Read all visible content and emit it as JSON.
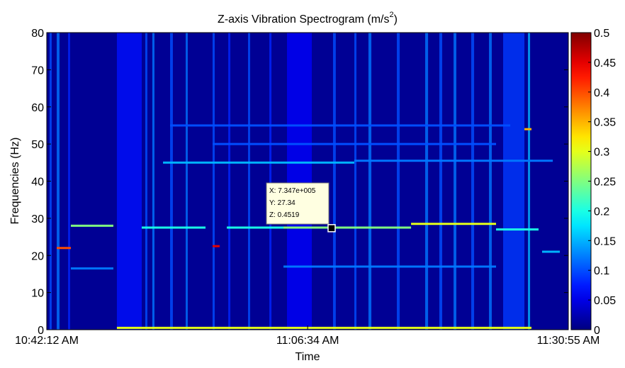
{
  "chart_data": {
    "type": "spectrogram",
    "title": "Z-axis Vibration Spectrogram (m/s",
    "title_superscript": "2",
    "title_suffix": ")",
    "xlabel": "Time",
    "ylabel": "Frequencies (Hz)",
    "xlim": [
      0,
      48.72
    ],
    "xticks": [
      {
        "value": 0,
        "label": "10:42:12 AM"
      },
      {
        "value": 24.37,
        "label": "11:06:34 AM"
      },
      {
        "value": 48.72,
        "label": "11:30:55 AM"
      }
    ],
    "ylim": [
      0,
      80
    ],
    "yticks": [
      0,
      10,
      20,
      30,
      40,
      50,
      60,
      70,
      80
    ],
    "clim": [
      0,
      0.5
    ],
    "cticks": [
      0,
      0.05,
      0.1,
      0.15,
      0.2,
      0.25,
      0.3,
      0.35,
      0.4,
      0.45,
      0.5
    ],
    "colormap": "jet",
    "columns": [
      {
        "t0": 0.26,
        "t1": 0.46,
        "intensity": 0.1
      },
      {
        "t0": 0.93,
        "t1": 1.19,
        "intensity": 0.12
      },
      {
        "t0": 1.99,
        "t1": 2.18,
        "intensity": 0.08
      },
      {
        "t0": 6.55,
        "t1": 8.87,
        "intensity": 0.07
      },
      {
        "t0": 9.2,
        "t1": 9.4,
        "intensity": 0.1
      },
      {
        "t0": 9.86,
        "t1": 10.06,
        "intensity": 0.12
      },
      {
        "t0": 11.52,
        "t1": 11.78,
        "intensity": 0.1
      },
      {
        "t0": 12.98,
        "t1": 13.17,
        "intensity": 0.12
      },
      {
        "t0": 15.49,
        "t1": 15.69,
        "intensity": 0.1
      },
      {
        "t0": 16.95,
        "t1": 17.15,
        "intensity": 0.08
      },
      {
        "t0": 18.8,
        "t1": 19.0,
        "intensity": 0.1
      },
      {
        "t0": 20.79,
        "t1": 20.99,
        "intensity": 0.08
      },
      {
        "t0": 22.44,
        "t1": 24.76,
        "intensity": 0.06
      },
      {
        "t0": 26.74,
        "t1": 27.0,
        "intensity": 0.1
      },
      {
        "t0": 28.73,
        "t1": 28.93,
        "intensity": 0.1
      },
      {
        "t0": 30.05,
        "t1": 30.32,
        "intensity": 0.12
      },
      {
        "t0": 32.7,
        "t1": 32.97,
        "intensity": 0.1
      },
      {
        "t0": 35.35,
        "t1": 35.62,
        "intensity": 0.12
      },
      {
        "t0": 36.67,
        "t1": 36.94,
        "intensity": 0.1
      },
      {
        "t0": 38.0,
        "t1": 38.26,
        "intensity": 0.12
      },
      {
        "t0": 39.65,
        "t1": 39.92,
        "intensity": 0.1
      },
      {
        "t0": 41.31,
        "t1": 41.57,
        "intensity": 0.12
      },
      {
        "t0": 42.63,
        "t1": 44.62,
        "intensity": 0.09
      },
      {
        "t0": 44.95,
        "t1": 45.15,
        "intensity": 0.15
      }
    ],
    "ridges": [
      {
        "t0": 2.25,
        "t1": 6.22,
        "f": 28,
        "intensity": 0.25
      },
      {
        "t0": 2.25,
        "t1": 6.22,
        "f": 16.5,
        "intensity": 0.12
      },
      {
        "t0": 0.93,
        "t1": 2.25,
        "f": 22,
        "intensity": 0.4
      },
      {
        "t0": 8.87,
        "t1": 14.83,
        "f": 27.5,
        "intensity": 0.2
      },
      {
        "t0": 15.49,
        "t1": 16.15,
        "f": 22.5,
        "intensity": 0.45
      },
      {
        "t0": 16.82,
        "t1": 22.11,
        "f": 27.5,
        "intensity": 0.2
      },
      {
        "t0": 22.11,
        "t1": 34.03,
        "f": 27.5,
        "intensity": 0.25
      },
      {
        "t0": 34.03,
        "t1": 41.97,
        "f": 28.5,
        "intensity": 0.3
      },
      {
        "t0": 41.97,
        "t1": 45.94,
        "f": 27,
        "intensity": 0.2
      },
      {
        "t0": 22.11,
        "t1": 41.97,
        "f": 17,
        "intensity": 0.12
      },
      {
        "t0": 10.86,
        "t1": 28.73,
        "f": 45,
        "intensity": 0.15
      },
      {
        "t0": 28.73,
        "t1": 47.27,
        "f": 45.5,
        "intensity": 0.12
      },
      {
        "t0": 11.52,
        "t1": 43.3,
        "f": 55,
        "intensity": 0.1
      },
      {
        "t0": 15.49,
        "t1": 41.97,
        "f": 50,
        "intensity": 0.1
      },
      {
        "t0": 6.55,
        "t1": 45.28,
        "f": 0.5,
        "intensity": 0.3
      },
      {
        "t0": 46.27,
        "t1": 47.93,
        "f": 21,
        "intensity": 0.15
      },
      {
        "t0": 44.62,
        "t1": 45.28,
        "f": 54,
        "intensity": 0.35
      }
    ],
    "datatip": {
      "x": 26.61,
      "y": 27.34,
      "lines": [
        "X: 7.347e+005",
        "Y: 27.34",
        "Z: 0.4519"
      ]
    }
  }
}
